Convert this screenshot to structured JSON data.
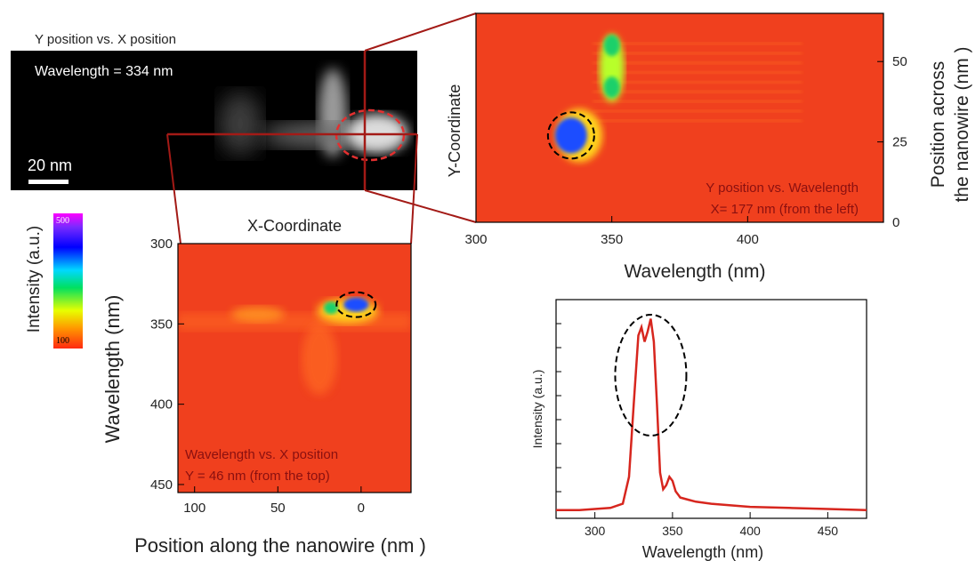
{
  "colors": {
    "outline": "#a31a16",
    "ellipse_red": "#e23030",
    "spectrum_line": "#d7261e",
    "heat_bg": "#f0401e"
  },
  "sem_panel": {
    "title": "Y position vs. X position",
    "wavelength_label": "Wavelength = 334 nm",
    "scale_bar_label": "20 nm"
  },
  "colorbar": {
    "label": "Intensity (a.u.)",
    "max_label": "500",
    "min_label": "100"
  },
  "chart_data": [
    {
      "type": "heatmap",
      "name_text": "Y position vs. Wavelength",
      "annotation_line1": "Y position vs. Wavelength",
      "annotation_line2": "X= 177 nm (from the left)",
      "xlabel": "Wavelength (nm)",
      "ylabel_left": "Y-Coordinate",
      "ylabel_right_line1": "Position across",
      "ylabel_right_line2": "the nanowire (nm )",
      "xlim": [
        300,
        450
      ],
      "ylim": [
        0,
        65
      ],
      "xticks": [
        300,
        350,
        400
      ],
      "yticks": [
        0,
        25,
        50
      ],
      "hotspots": [
        {
          "x": 335,
          "y": 27,
          "level": "max"
        },
        {
          "x": 350,
          "y": 42,
          "level": "high"
        },
        {
          "x": 350,
          "y": 55,
          "level": "high"
        }
      ],
      "circled": {
        "x": 335,
        "y": 27
      }
    },
    {
      "type": "heatmap",
      "annotation_line1": "Wavelength vs. X position",
      "annotation_line2": "Y = 46 nm (from the top)",
      "top_label": "X-Coordinate",
      "xlabel": "Position along the nanowire (nm )",
      "ylabel": "Wavelength (nm)",
      "xlim": [
        110,
        -30
      ],
      "ylim": [
        300,
        455
      ],
      "xticks": [
        100,
        50,
        0
      ],
      "yticks": [
        300,
        350,
        400,
        450
      ],
      "hotspots": [
        {
          "x": 18,
          "y": 340,
          "level": "high"
        },
        {
          "x": 3,
          "y": 338,
          "level": "max"
        }
      ],
      "circled": {
        "x": 3,
        "y": 338
      }
    },
    {
      "type": "line",
      "xlabel": "Wavelength (nm)",
      "ylabel": "Intensity (a.u.)",
      "xlim": [
        275,
        475
      ],
      "ylim": [
        0,
        1
      ],
      "xticks": [
        300,
        350,
        400,
        450
      ],
      "series": [
        {
          "x": [
            275,
            290,
            300,
            310,
            318,
            322,
            325,
            328,
            330,
            332,
            334,
            336,
            338,
            340,
            342,
            344,
            346,
            348,
            350,
            352,
            355,
            360,
            365,
            375,
            400,
            425,
            450,
            475
          ],
          "values": [
            0.04,
            0.04,
            0.045,
            0.05,
            0.07,
            0.2,
            0.55,
            0.88,
            0.92,
            0.85,
            0.9,
            0.96,
            0.85,
            0.55,
            0.22,
            0.14,
            0.16,
            0.2,
            0.18,
            0.13,
            0.1,
            0.09,
            0.08,
            0.07,
            0.055,
            0.05,
            0.045,
            0.04
          ]
        }
      ],
      "circled": {
        "x": 336
      }
    }
  ]
}
